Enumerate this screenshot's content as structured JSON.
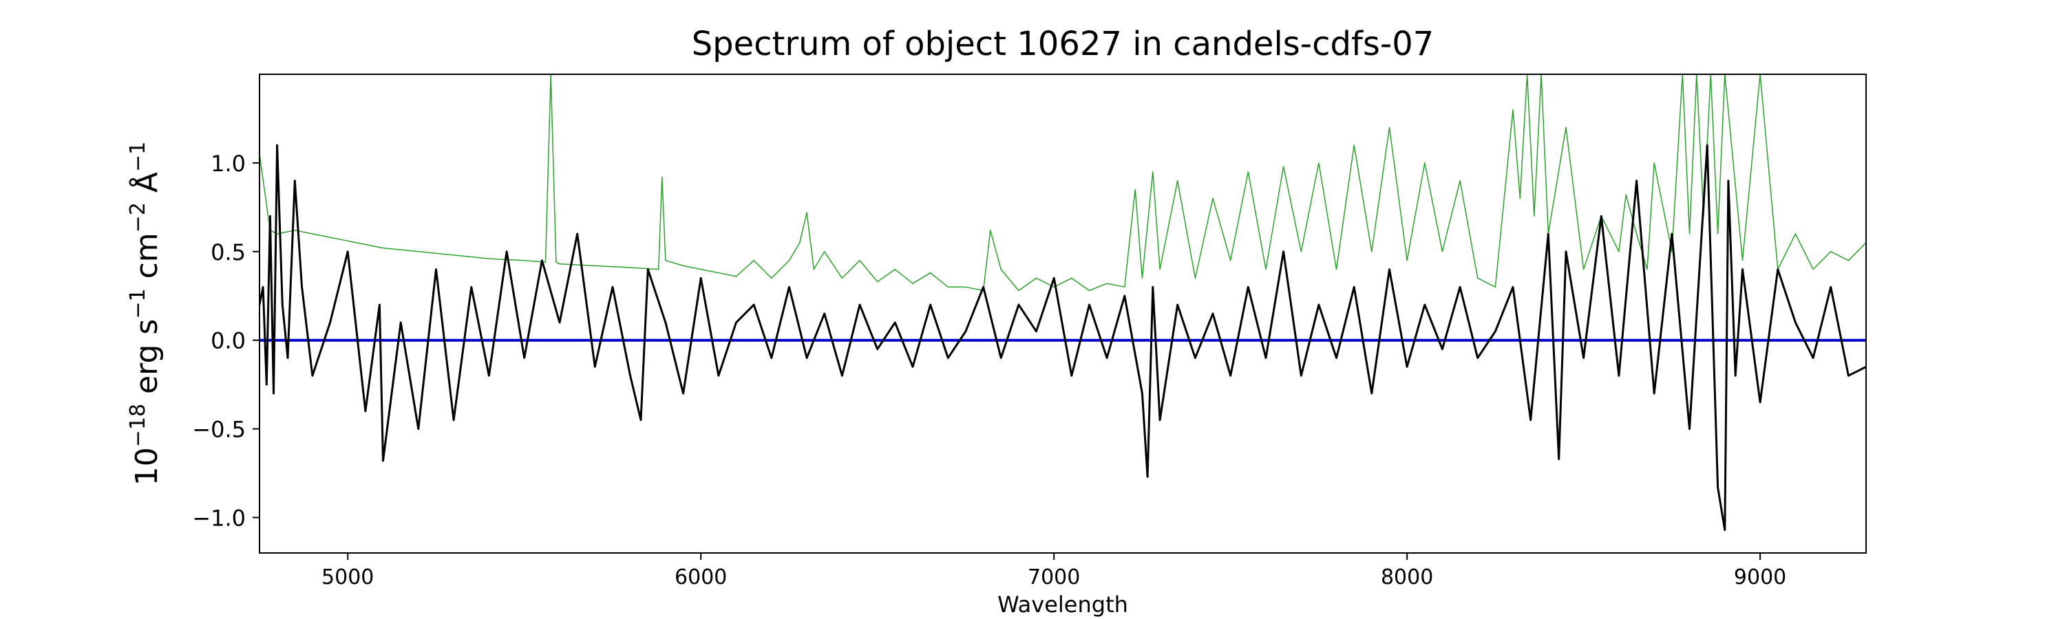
{
  "chart_data": {
    "type": "line",
    "title": "Spectrum of object 10627 in candels-cdfs-07",
    "xlabel": "Wavelength",
    "ylabel": {
      "base": "10",
      "exp1": "−18",
      "unit_a": " erg s",
      "exp2": "−1",
      "unit_b": " cm",
      "exp3": "−2",
      "unit_c": " Å",
      "exp4": "−1"
    },
    "xlim": [
      4750,
      9300
    ],
    "ylim": [
      -1.2,
      1.5
    ],
    "xticks": [
      5000,
      6000,
      7000,
      8000,
      9000
    ],
    "xtick_labels": [
      "5000",
      "6000",
      "7000",
      "8000",
      "9000"
    ],
    "yticks": [
      -1.0,
      -0.5,
      0.0,
      0.5,
      1.0
    ],
    "ytick_labels": [
      "−1.0",
      "−0.5",
      "0.0",
      "0.5",
      "1.0"
    ],
    "grid": false,
    "series": [
      {
        "role": "flux",
        "color": "#000000",
        "x": [
          4750,
          4760,
          4770,
          4780,
          4790,
          4800,
          4815,
          4830,
          4850,
          4870,
          4900,
          4950,
          5000,
          5050,
          5090,
          5100,
          5150,
          5200,
          5250,
          5300,
          5350,
          5400,
          5450,
          5500,
          5550,
          5600,
          5650,
          5700,
          5750,
          5800,
          5830,
          5850,
          5900,
          5950,
          6000,
          6050,
          6100,
          6150,
          6200,
          6250,
          6300,
          6350,
          6400,
          6450,
          6500,
          6550,
          6600,
          6650,
          6700,
          6750,
          6800,
          6850,
          6900,
          6950,
          7000,
          7050,
          7100,
          7150,
          7200,
          7250,
          7265,
          7280,
          7300,
          7350,
          7400,
          7450,
          7500,
          7550,
          7600,
          7650,
          7700,
          7750,
          7800,
          7850,
          7900,
          7950,
          8000,
          8050,
          8100,
          8150,
          8200,
          8250,
          8300,
          8350,
          8400,
          8430,
          8450,
          8500,
          8550,
          8600,
          8650,
          8700,
          8750,
          8800,
          8850,
          8880,
          8900,
          8910,
          8930,
          8950,
          9000,
          9050,
          9100,
          9150,
          9200,
          9250,
          9300
        ],
        "y": [
          0.2,
          0.3,
          -0.25,
          0.7,
          -0.3,
          1.1,
          0.2,
          -0.1,
          0.9,
          0.3,
          -0.2,
          0.1,
          0.5,
          -0.4,
          0.2,
          -0.68,
          0.1,
          -0.5,
          0.4,
          -0.45,
          0.3,
          -0.2,
          0.5,
          -0.1,
          0.45,
          0.1,
          0.6,
          -0.15,
          0.3,
          -0.2,
          -0.45,
          0.4,
          0.1,
          -0.3,
          0.35,
          -0.2,
          0.1,
          0.2,
          -0.1,
          0.3,
          -0.1,
          0.15,
          -0.2,
          0.2,
          -0.05,
          0.1,
          -0.15,
          0.2,
          -0.1,
          0.05,
          0.3,
          -0.1,
          0.2,
          0.05,
          0.35,
          -0.2,
          0.2,
          -0.1,
          0.25,
          -0.3,
          -0.77,
          0.3,
          -0.45,
          0.2,
          -0.1,
          0.15,
          -0.2,
          0.3,
          -0.1,
          0.5,
          -0.2,
          0.2,
          -0.1,
          0.3,
          -0.3,
          0.4,
          -0.15,
          0.2,
          -0.05,
          0.3,
          -0.1,
          0.05,
          0.3,
          -0.45,
          0.6,
          -0.67,
          0.5,
          -0.1,
          0.7,
          -0.2,
          0.9,
          -0.3,
          0.6,
          -0.5,
          1.1,
          -0.83,
          -1.07,
          0.9,
          -0.2,
          0.4,
          -0.35,
          0.4,
          0.1,
          -0.1,
          0.3,
          -0.2,
          -0.15
        ]
      },
      {
        "role": "error",
        "color": "#2ca02c",
        "x": [
          4750,
          4780,
          4800,
          4850,
          4900,
          5000,
          5100,
          5200,
          5300,
          5400,
          5500,
          5560,
          5575,
          5590,
          5600,
          5700,
          5800,
          5880,
          5890,
          5900,
          5950,
          6000,
          6050,
          6100,
          6150,
          6200,
          6250,
          6280,
          6300,
          6320,
          6350,
          6400,
          6450,
          6500,
          6550,
          6600,
          6650,
          6700,
          6750,
          6800,
          6820,
          6850,
          6900,
          6950,
          7000,
          7050,
          7100,
          7150,
          7200,
          7230,
          7250,
          7280,
          7300,
          7350,
          7400,
          7450,
          7500,
          7550,
          7600,
          7650,
          7700,
          7750,
          7800,
          7850,
          7900,
          7950,
          8000,
          8050,
          8100,
          8150,
          8200,
          8250,
          8280,
          8300,
          8320,
          8340,
          8360,
          8380,
          8400,
          8450,
          8500,
          8550,
          8600,
          8620,
          8650,
          8680,
          8700,
          8750,
          8780,
          8800,
          8820,
          8840,
          8860,
          8880,
          8900,
          8950,
          9000,
          9050,
          9100,
          9150,
          9200,
          9250,
          9300
        ],
        "y": [
          1.05,
          0.62,
          0.6,
          0.62,
          0.6,
          0.56,
          0.52,
          0.5,
          0.48,
          0.46,
          0.45,
          0.44,
          1.5,
          0.44,
          0.43,
          0.42,
          0.41,
          0.4,
          0.92,
          0.45,
          0.42,
          0.4,
          0.38,
          0.36,
          0.45,
          0.35,
          0.45,
          0.55,
          0.72,
          0.4,
          0.5,
          0.35,
          0.45,
          0.33,
          0.4,
          0.32,
          0.38,
          0.3,
          0.3,
          0.28,
          0.62,
          0.4,
          0.28,
          0.35,
          0.3,
          0.35,
          0.28,
          0.32,
          0.3,
          0.85,
          0.35,
          0.95,
          0.4,
          0.9,
          0.35,
          0.8,
          0.45,
          0.95,
          0.4,
          0.98,
          0.5,
          1.0,
          0.4,
          1.1,
          0.5,
          1.2,
          0.45,
          1.0,
          0.5,
          0.9,
          0.35,
          0.3,
          0.9,
          1.3,
          0.8,
          1.5,
          0.7,
          1.5,
          0.6,
          1.2,
          0.4,
          0.7,
          0.5,
          0.82,
          0.6,
          0.4,
          1.0,
          0.5,
          1.5,
          0.6,
          1.5,
          0.7,
          1.5,
          0.6,
          1.5,
          0.45,
          1.5,
          0.4,
          0.6,
          0.4,
          0.5,
          0.45,
          0.55
        ]
      },
      {
        "role": "zero",
        "color": "#0000cc",
        "x": [
          4750,
          9300
        ],
        "y": [
          0,
          0
        ]
      }
    ]
  }
}
